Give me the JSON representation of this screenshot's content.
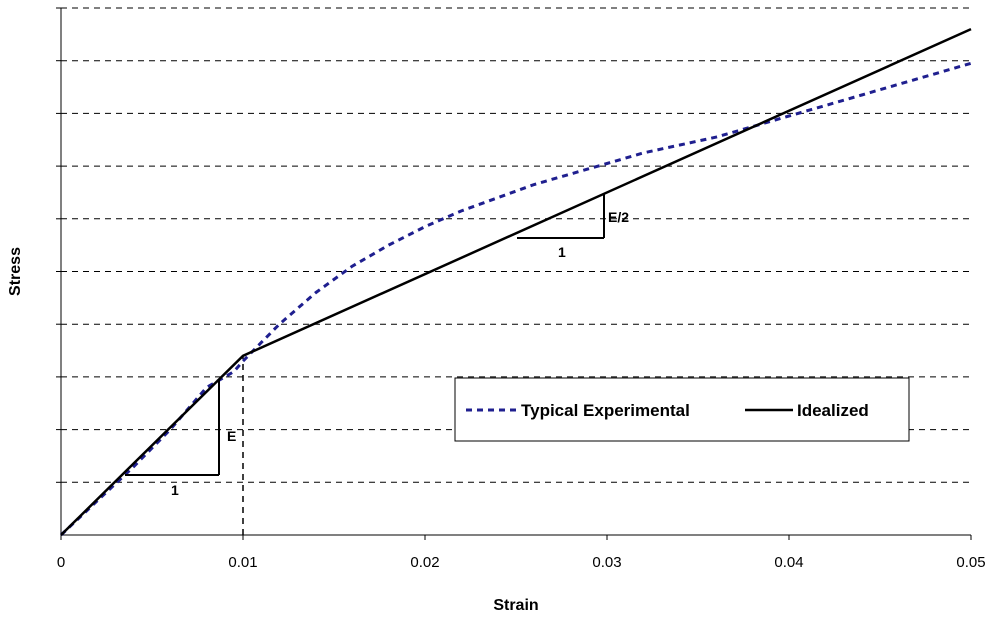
{
  "chart_data": {
    "type": "line",
    "xlabel": "Strain",
    "ylabel": "Stress",
    "xlim": [
      0,
      0.05
    ],
    "ylim": [
      0,
      10
    ],
    "x_ticks": [
      "0",
      "0.01",
      "0.02",
      "0.03",
      "0.04",
      "0.05"
    ],
    "x_tick_values": [
      0,
      0.01,
      0.02,
      0.03,
      0.04,
      0.05
    ],
    "y_gridlines": 10,
    "grid": "horizontal dashed",
    "legend_position": "lower-right",
    "series": [
      {
        "name": "Typical Experimental",
        "style": "dashed",
        "color": "#1f1f8f",
        "x": [
          0,
          0.002,
          0.004,
          0.006,
          0.008,
          0.009,
          0.0095,
          0.01,
          0.011,
          0.012,
          0.014,
          0.016,
          0.018,
          0.02,
          0.022,
          0.024,
          0.026,
          0.028,
          0.03,
          0.032,
          0.034,
          0.036,
          0.038,
          0.04,
          0.042,
          0.044,
          0.046,
          0.048,
          0.05
        ],
        "y": [
          0,
          0.65,
          1.3,
          2.0,
          2.8,
          3.0,
          3.1,
          3.3,
          3.65,
          4.0,
          4.6,
          5.1,
          5.5,
          5.85,
          6.15,
          6.4,
          6.65,
          6.85,
          7.05,
          7.25,
          7.4,
          7.55,
          7.75,
          7.95,
          8.15,
          8.35,
          8.55,
          8.75,
          8.95
        ]
      },
      {
        "name": "Idealized",
        "style": "solid",
        "color": "#000000",
        "x": [
          0,
          0.01,
          0.05
        ],
        "y": [
          0,
          3.4,
          9.6
        ]
      }
    ],
    "annotations": [
      {
        "text": "E",
        "type": "slope-triangle"
      },
      {
        "text": "1",
        "type": "slope-triangle"
      },
      {
        "text": "E/2",
        "type": "slope-triangle"
      },
      {
        "text": "1",
        "type": "slope-triangle"
      }
    ],
    "reference_line": {
      "x": 0.01,
      "style": "dashed vertical"
    }
  }
}
